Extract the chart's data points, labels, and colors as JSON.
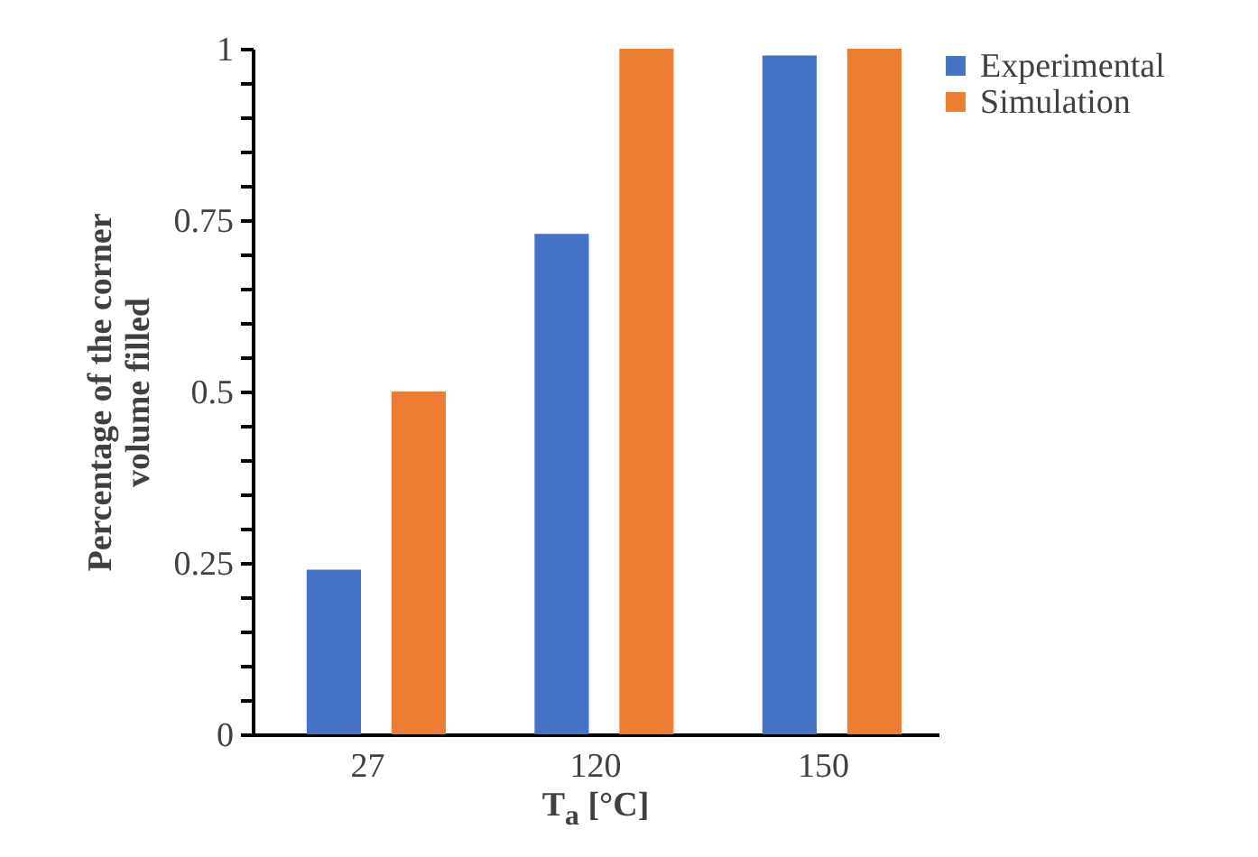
{
  "chart_data": {
    "type": "bar",
    "xlabel": "T$_{a}$ [°C]",
    "ylabel": "Percentage of the corner volume filled",
    "categories": [
      "27",
      "120",
      "150"
    ],
    "series": [
      {
        "name": "Experimental",
        "color": "#4472c4",
        "values": [
          0.24,
          0.73,
          0.99
        ]
      },
      {
        "name": "Simulation",
        "color": "#ed7d31",
        "values": [
          0.5,
          1,
          1
        ]
      }
    ],
    "ylim": [
      0,
      1
    ],
    "yticks": [
      0,
      {
        "value": 0.05,
        "label": null
      },
      {
        "value": 0.1,
        "label": null
      },
      {
        "value": 0.15,
        "label": null
      },
      {
        "value": 0.2,
        "label": null
      },
      0.25,
      {
        "value": 0.3,
        "label": null
      },
      {
        "value": 0.35,
        "label": null
      },
      {
        "value": 0.4,
        "label": null
      },
      {
        "value": 0.45,
        "label": null
      },
      0.5,
      {
        "value": 0.55,
        "label": null
      },
      {
        "value": 0.6,
        "label": null
      },
      {
        "value": 0.65,
        "label": null
      },
      {
        "value": 0.7,
        "label": null
      },
      0.75,
      {
        "value": 0.8,
        "label": null
      },
      {
        "value": 0.85,
        "label": null
      },
      {
        "value": 0.9,
        "label": null
      },
      {
        "value": 0.95,
        "label": null
      },
      1
    ],
    "grid": false,
    "legend": "top right"
  }
}
